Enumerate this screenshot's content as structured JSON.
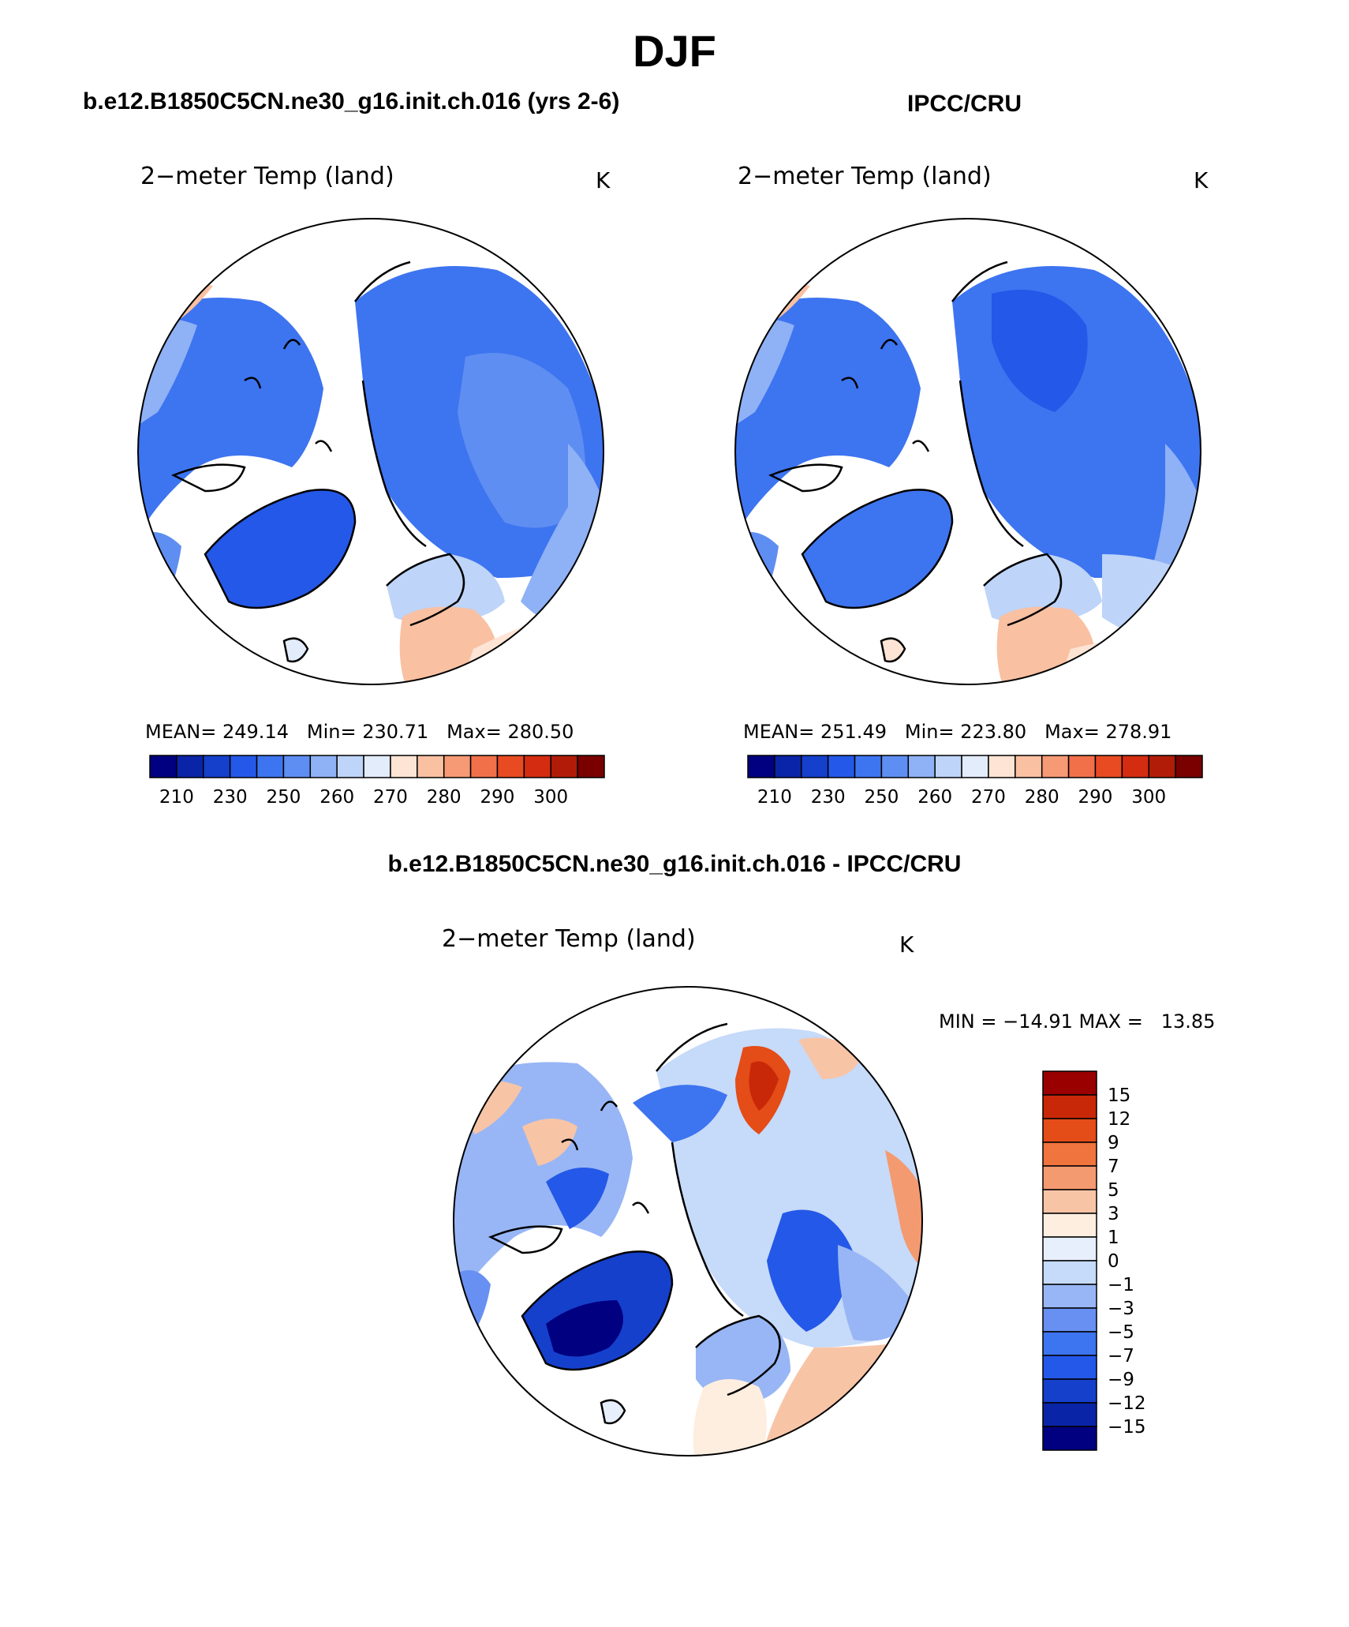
{
  "figure": {
    "season_title": "DJF"
  },
  "panels": [
    {
      "case_title": "b.e12.B1850C5CN.ne30_g16.init.ch.016 (yrs 2-6)",
      "variable": "2−meter Temp (land)",
      "units": "K",
      "stats": {
        "mean_label": "MEAN=",
        "mean": "249.14",
        "min_label": "Min=",
        "min": "230.71",
        "max_label": "Max=",
        "max": "280.50"
      },
      "colorbar_ticks": [
        "210",
        "230",
        "250",
        "260",
        "270",
        "280",
        "290",
        "300"
      ]
    },
    {
      "case_title": "IPCC/CRU",
      "variable": "2−meter Temp (land)",
      "units": "K",
      "stats": {
        "mean_label": "MEAN=",
        "mean": "251.49",
        "min_label": "Min=",
        "min": "223.80",
        "max_label": "Max=",
        "max": "278.91"
      },
      "colorbar_ticks": [
        "210",
        "230",
        "250",
        "260",
        "270",
        "280",
        "290",
        "300"
      ]
    }
  ],
  "difference": {
    "case_title": "b.e12.B1850C5CN.ne30_g16.init.ch.016 - IPCC/CRU",
    "variable": "2−meter Temp (land)",
    "units": "K",
    "minmax_text": "MIN = −14.91 MAX =   13.85",
    "colorbar_ticks": [
      "15",
      "12",
      "9",
      "7",
      "5",
      "3",
      "1",
      "0",
      "−1",
      "−3",
      "−5",
      "−7",
      "−9",
      "−12",
      "−15"
    ]
  },
  "colors": {
    "abs_scale": [
      "#000080",
      "#0a24a8",
      "#1540cc",
      "#2458e8",
      "#3d74f0",
      "#5f8ef2",
      "#8fb1f5",
      "#bed4f8",
      "#e2ecfa",
      "#fde4d4",
      "#f9c0a2",
      "#f59a74",
      "#f1704a",
      "#e84a22",
      "#d42c10",
      "#b01c08",
      "#7a0000"
    ],
    "diff_scale": [
      "#000080",
      "#0a24a8",
      "#1540cc",
      "#2458e8",
      "#3d74f0",
      "#6890f2",
      "#98b6f5",
      "#c6daf9",
      "#e6effb",
      "#fdeee0",
      "#f8c4a6",
      "#f49a70",
      "#f0743e",
      "#e44c18",
      "#c82808",
      "#9a0000"
    ]
  }
}
